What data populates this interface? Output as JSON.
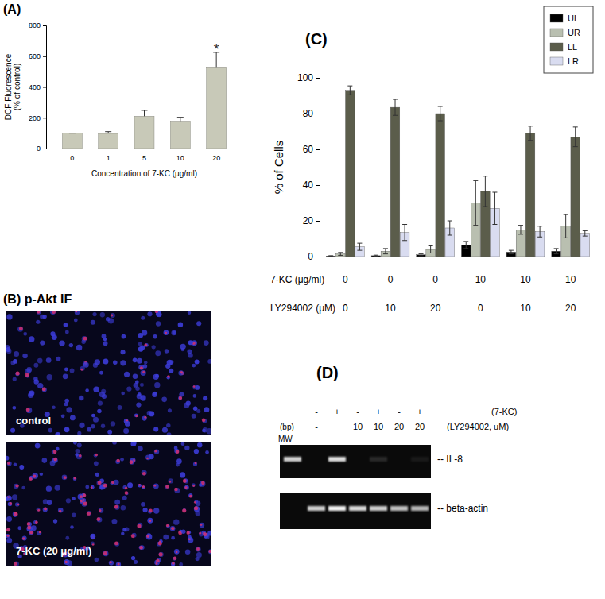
{
  "chart_data": [
    {
      "type": "bar",
      "title": "(A)",
      "categories": [
        "0",
        "1",
        "5",
        "10",
        "20"
      ],
      "values": [
        100,
        98,
        210,
        178,
        530
      ],
      "errors": [
        0,
        12,
        38,
        25,
        95
      ],
      "color": "#c8c9b8",
      "x_label": "Concentration of 7-KC (μg/ml)",
      "y_label": [
        "DCF Fluorescence",
        "(% of control)"
      ],
      "ylim": [
        0,
        800
      ],
      "yticks": [
        0,
        200,
        400,
        600,
        800
      ],
      "annotations": [
        {
          "text": "*",
          "category": "20"
        }
      ]
    },
    {
      "type": "bar",
      "title": "(C)",
      "y_label": "% of Cells",
      "categories": [
        null,
        null,
        null,
        null,
        null,
        null
      ],
      "category_rows": [
        {
          "label": "7-KC (μg/ml)",
          "values": [
            0,
            0,
            0,
            10,
            10,
            10
          ]
        },
        {
          "label": "LY294002 (μM)",
          "values": [
            0,
            10,
            20,
            0,
            10,
            20
          ]
        }
      ],
      "series": [
        {
          "name": "UL",
          "color": "#000000",
          "values": [
            0.3,
            0.5,
            1,
            6.5,
            2.5,
            3
          ],
          "errors": [
            0.2,
            0.3,
            0.5,
            2,
            1,
            1.5
          ]
        },
        {
          "name": "UR",
          "color": "#b9bfb0",
          "values": [
            1.5,
            3,
            4,
            30,
            15,
            17
          ],
          "errors": [
            0.8,
            1.5,
            2,
            12.5,
            2.5,
            6.5
          ]
        },
        {
          "name": "LL",
          "color": "#5b5d4b",
          "values": [
            93,
            83.5,
            80,
            36.5,
            69,
            67
          ],
          "errors": [
            2.5,
            4.5,
            4,
            8.5,
            4,
            5.5
          ]
        },
        {
          "name": "LR",
          "color": "#d9dcf0",
          "values": [
            5.5,
            13.5,
            16,
            27,
            14,
            13
          ],
          "errors": [
            2,
            4.5,
            4,
            9,
            3,
            1.5
          ]
        }
      ],
      "ylim": [
        0,
        100
      ],
      "yticks": [
        0,
        20,
        40,
        60,
        80,
        100
      ],
      "legend": "upper right"
    }
  ],
  "panel_b": {
    "title": "(B) p-Akt IF",
    "images": [
      {
        "label": "control"
      },
      {
        "label": "7-KC (20 μg/ml)"
      }
    ]
  },
  "panel_d": {
    "title": "(D)",
    "unit_label": "(bp)",
    "marker_label": "MW",
    "rows": [
      {
        "label": "(7-KC)",
        "values": [
          "-",
          "+",
          "-",
          "+",
          "-",
          "+"
        ]
      },
      {
        "label": "(LY294002, uM)",
        "values": [
          "-",
          null,
          "10",
          "10",
          "20",
          "20"
        ]
      }
    ],
    "bands": [
      {
        "label": "-- IL-8",
        "marker": 0.8,
        "intensity": [
          0,
          0.85,
          0,
          0.12,
          0,
          0.06
        ]
      },
      {
        "label": "-- beta-actin",
        "marker": 0,
        "intensity": [
          0.8,
          0.95,
          0.85,
          0.8,
          0.75,
          0.7
        ]
      }
    ]
  }
}
